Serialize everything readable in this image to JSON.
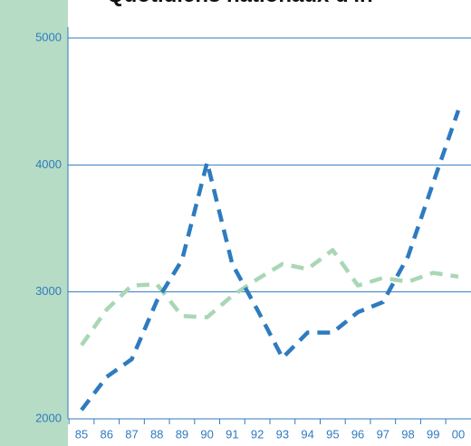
{
  "chart_data": {
    "type": "line",
    "title": "Quotidiens nationaux d'in",
    "categories": [
      "85",
      "86",
      "87",
      "88",
      "89",
      "90",
      "91",
      "92",
      "93",
      "94",
      "95",
      "96",
      "97",
      "98",
      "99",
      "00"
    ],
    "series": [
      {
        "color": "#2e7bbf",
        "values": [
          2070,
          2330,
          2470,
          2930,
          3250,
          4020,
          3220,
          2860,
          2480,
          2680,
          2680,
          2840,
          2920,
          3280,
          3860,
          4430
        ]
      },
      {
        "color": "#a9d7b5",
        "values": [
          2580,
          2860,
          3050,
          3060,
          2810,
          2800,
          2970,
          3100,
          3220,
          3180,
          3330,
          3050,
          3110,
          3080,
          3150,
          3120
        ]
      }
    ],
    "ylim": [
      2000,
      5000
    ],
    "yticks": [
      2000,
      3000,
      4000,
      5000
    ],
    "grid": true
  }
}
